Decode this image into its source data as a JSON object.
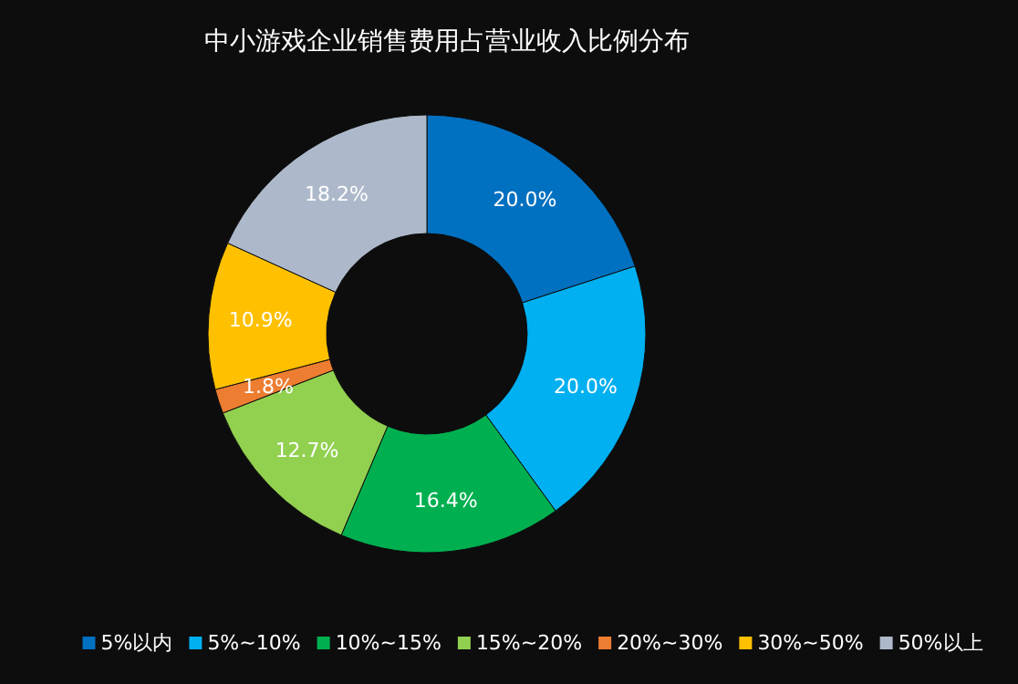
{
  "chart_data": {
    "type": "donut",
    "title": "中小游戏企业销售费用占营业收入比例分布",
    "categories": [
      "5%以内",
      "5%~10%",
      "10%~15%",
      "15%~20%",
      "20%~30%",
      "30%~50%",
      "50%以上"
    ],
    "values": [
      20.0,
      20.0,
      16.4,
      12.7,
      1.8,
      10.9,
      18.2
    ],
    "colors": [
      "#0070c0",
      "#00b0f0",
      "#00b050",
      "#92d050",
      "#ed7d31",
      "#ffc000",
      "#adb9ca"
    ],
    "value_labels": [
      "20.0%",
      "20.0%",
      "16.4%",
      "12.7%",
      "1.8%",
      "10.9%",
      "18.2%"
    ],
    "legend": "bottom"
  }
}
